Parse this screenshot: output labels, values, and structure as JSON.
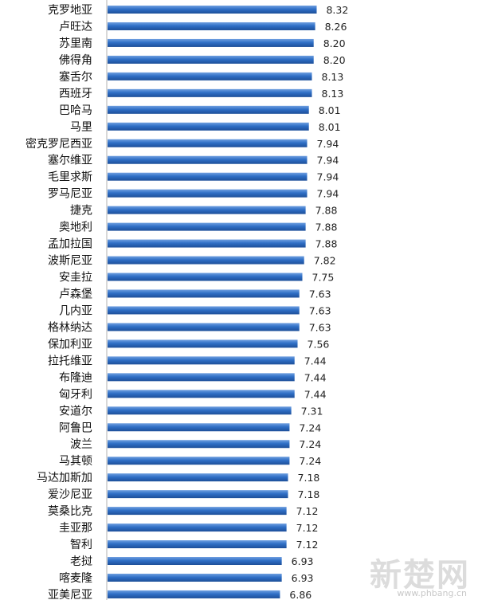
{
  "chart_data": {
    "type": "bar",
    "orientation": "horizontal",
    "title": "",
    "xlabel": "",
    "ylabel": "",
    "xlim": [
      0,
      8.5
    ],
    "grid": false,
    "legend": "none",
    "bar_color": "#2f6fc6",
    "categories": [
      "克罗地亚",
      "卢旺达",
      "苏里南",
      "佛得角",
      "塞舌尔",
      "西班牙",
      "巴哈马",
      "马里",
      "密克罗尼西亚",
      "塞尔维亚",
      "毛里求斯",
      "罗马尼亚",
      "捷克",
      "奥地利",
      "孟加拉国",
      "波斯尼亚",
      "安圭拉",
      "卢森堡",
      "几内亚",
      "格林纳达",
      "保加利亚",
      "拉托维亚",
      "布隆迪",
      "匈牙利",
      "安道尔",
      "阿鲁巴",
      "波兰",
      "马其顿",
      "马达加斯加",
      "爱沙尼亚",
      "莫桑比克",
      "圭亚那",
      "智利",
      "老挝",
      "喀麦隆",
      "亚美尼亚"
    ],
    "values": [
      8.32,
      8.26,
      8.2,
      8.2,
      8.13,
      8.13,
      8.01,
      8.01,
      7.94,
      7.94,
      7.94,
      7.94,
      7.88,
      7.88,
      7.88,
      7.82,
      7.75,
      7.63,
      7.63,
      7.63,
      7.56,
      7.44,
      7.44,
      7.44,
      7.31,
      7.24,
      7.24,
      7.24,
      7.18,
      7.18,
      7.12,
      7.12,
      7.12,
      6.93,
      6.93,
      6.86
    ],
    "value_labels": [
      "8.32",
      "8.26",
      "8.20",
      "8.20",
      "8.13",
      "8.13",
      "8.01",
      "8.01",
      "7.94",
      "7.94",
      "7.94",
      "7.94",
      "7.88",
      "7.88",
      "7.88",
      "7.82",
      "7.75",
      "7.63",
      "7.63",
      "7.63",
      "7.56",
      "7.44",
      "7.44",
      "7.44",
      "7.31",
      "7.24",
      "7.24",
      "7.24",
      "7.18",
      "7.18",
      "7.12",
      "7.12",
      "7.12",
      "6.93",
      "6.93",
      "6.86"
    ]
  },
  "watermark": {
    "text": "新楚网",
    "url": "www.phbang.cn"
  }
}
